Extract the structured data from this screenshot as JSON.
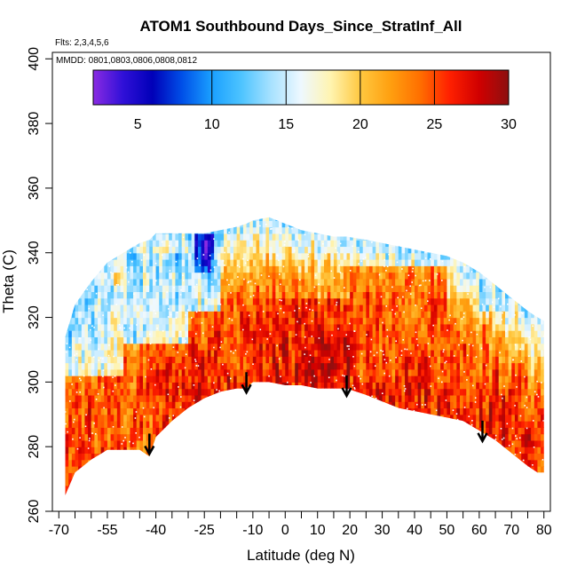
{
  "chart_data": {
    "type": "heatmap",
    "title": "ATOM1 Southbound Days_Since_StratInf_All",
    "flights_label": "Flts: 2,3,4,5,6",
    "dates_label": "MMDD: 0801,0803,0806,0808,0812",
    "xlabel": "Latitude (deg N)",
    "ylabel": "Theta (C)",
    "xlim": [
      -72,
      82
    ],
    "ylim": [
      260,
      402
    ],
    "x_ticks": [
      -70,
      -55,
      -40,
      -25,
      -10,
      0,
      10,
      20,
      30,
      40,
      50,
      60,
      70,
      80
    ],
    "x_tick_labels": [
      "-70",
      "-55",
      "-40",
      "-25",
      "-10",
      "0",
      "10",
      "20",
      "30",
      "40",
      "50",
      "60",
      "70",
      "80"
    ],
    "x_minor_ticks": [
      -65,
      -60,
      -50,
      -45,
      -35,
      -30,
      -20,
      -15,
      -5,
      5,
      15,
      25,
      35,
      45,
      55,
      65,
      75
    ],
    "y_ticks": [
      260,
      280,
      300,
      320,
      340,
      360,
      380,
      400
    ],
    "y_tick_labels": [
      "260",
      "280",
      "300",
      "320",
      "340",
      "360",
      "380",
      "400"
    ],
    "colorbar": {
      "range": [
        2,
        30
      ],
      "ticks": [
        5,
        10,
        15,
        20,
        25,
        30
      ],
      "tick_labels": [
        "5",
        "10",
        "15",
        "20",
        "25",
        "30"
      ],
      "dividers": [
        10,
        15,
        20,
        25
      ],
      "stops": [
        {
          "v": 2,
          "color": "#8a2be2"
        },
        {
          "v": 4,
          "color": "#3010d8"
        },
        {
          "v": 6,
          "color": "#0000b8"
        },
        {
          "v": 8,
          "color": "#0050e8"
        },
        {
          "v": 10,
          "color": "#1aa0ff"
        },
        {
          "v": 12,
          "color": "#4ec4ff"
        },
        {
          "v": 14,
          "color": "#a8e2ff"
        },
        {
          "v": 16,
          "color": "#eef8ff"
        },
        {
          "v": 18,
          "color": "#fff4b0"
        },
        {
          "v": 20,
          "color": "#ffc840"
        },
        {
          "v": 22,
          "color": "#ffa010"
        },
        {
          "v": 24,
          "color": "#ff7000"
        },
        {
          "v": 26,
          "color": "#ff2000"
        },
        {
          "v": 28,
          "color": "#d00000"
        },
        {
          "v": 30,
          "color": "#8c1010"
        }
      ]
    },
    "data_envelope": {
      "description": "approximate domain of the colored field (latitude, theta_bottom, theta_top)",
      "lat": [
        -68,
        -65,
        -60,
        -55,
        -50,
        -45,
        -42,
        -40,
        -35,
        -30,
        -25,
        -20,
        -15,
        -12,
        -10,
        -5,
        0,
        5,
        10,
        15,
        19,
        25,
        30,
        35,
        40,
        45,
        50,
        55,
        60,
        65,
        70,
        75,
        78,
        80
      ],
      "theta_bottom": [
        265,
        272,
        276,
        279,
        279,
        279,
        277,
        283,
        288,
        292,
        295,
        297,
        298,
        298,
        300,
        300,
        299,
        299,
        298,
        298,
        298,
        296,
        294,
        292,
        291,
        290,
        289,
        288,
        285,
        282,
        278,
        274,
        272,
        272
      ],
      "theta_top": [
        314,
        324,
        331,
        337,
        340,
        343,
        344,
        346,
        346,
        346,
        346,
        347,
        348,
        349,
        350,
        351,
        349,
        347,
        346,
        345,
        345,
        344,
        343,
        342,
        341,
        340,
        339,
        337,
        334,
        330,
        326,
        322,
        320,
        319
      ]
    },
    "regions": [
      {
        "lat": [
          -68,
          -50
        ],
        "theta": [
          303,
          330
        ],
        "value": 13
      },
      {
        "lat": [
          -50,
          -30
        ],
        "theta": [
          312,
          340
        ],
        "value": 12
      },
      {
        "lat": [
          -30,
          -20
        ],
        "theta": [
          322,
          346
        ],
        "value": 11
      },
      {
        "lat": [
          -28,
          -22
        ],
        "theta": [
          334,
          346
        ],
        "value": 6
      },
      {
        "lat": [
          -26,
          -23
        ],
        "theta": [
          337,
          344
        ],
        "value": 3
      },
      {
        "lat": [
          60,
          80
        ],
        "theta": [
          322,
          338
        ],
        "value": 14
      },
      {
        "lat": [
          55,
          75
        ],
        "theta": [
          334,
          344
        ],
        "value": 15
      },
      {
        "lat": [
          -68,
          -40
        ],
        "theta": [
          272,
          300
        ],
        "value": 24
      },
      {
        "lat": [
          -10,
          20
        ],
        "theta": [
          300,
          325
        ],
        "value": 27
      },
      {
        "lat": [
          20,
          50
        ],
        "theta": [
          300,
          335
        ],
        "value": 25
      },
      {
        "lat": [
          -20,
          -10
        ],
        "theta": [
          305,
          325
        ],
        "value": 25
      }
    ],
    "arrows": [
      {
        "lat": -42,
        "theta": 278
      },
      {
        "lat": -12,
        "theta": 297
      },
      {
        "lat": 19,
        "theta": 296
      },
      {
        "lat": 61,
        "theta": 282
      }
    ]
  }
}
